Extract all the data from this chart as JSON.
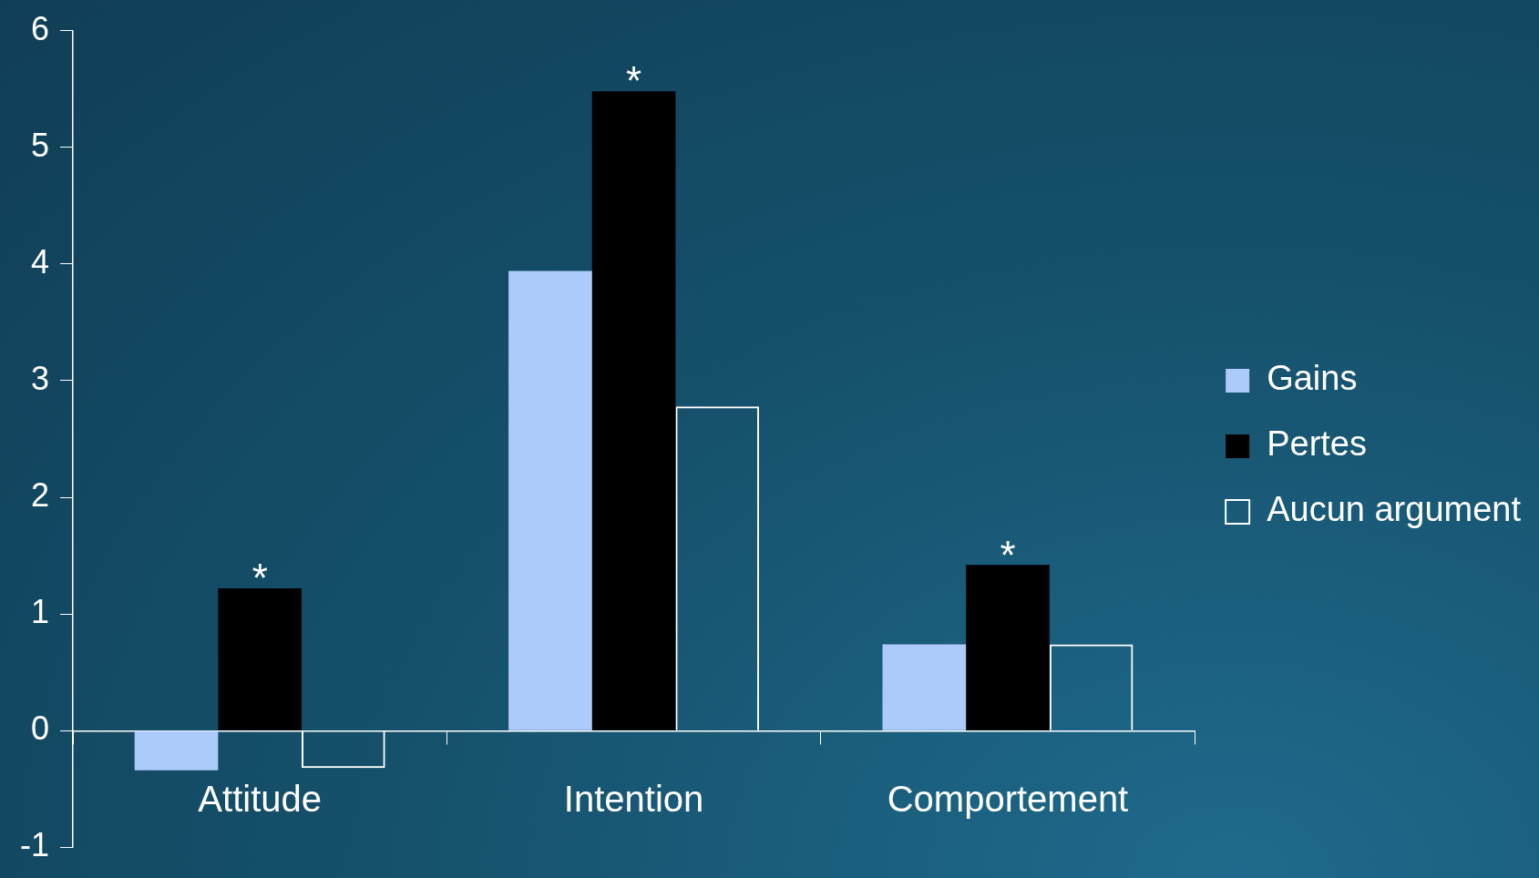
{
  "chart_data": {
    "type": "bar",
    "categories": [
      "Attitude",
      "Intention",
      "Comportement"
    ],
    "series": [
      {
        "name": "Gains",
        "color": "#adcbfa",
        "values": [
          -0.34,
          3.94,
          0.74
        ]
      },
      {
        "name": "Pertes",
        "color": "#000000",
        "values": [
          1.22,
          5.48,
          1.42
        ]
      },
      {
        "name": "Aucun argument",
        "color": "#ffffff",
        "values": [
          -0.32,
          2.78,
          0.74
        ]
      }
    ],
    "ylim": [
      -1,
      6
    ],
    "yticks": [
      -1,
      0,
      1,
      2,
      3,
      4,
      5,
      6
    ],
    "grid": false,
    "legend": "right",
    "annotations": [
      {
        "text": "*",
        "x": "Attitude",
        "y": 1.22
      },
      {
        "text": "*",
        "x": "Intention",
        "y": 5.48
      },
      {
        "text": "*",
        "x": "Comportement",
        "y": 1.42
      }
    ]
  }
}
